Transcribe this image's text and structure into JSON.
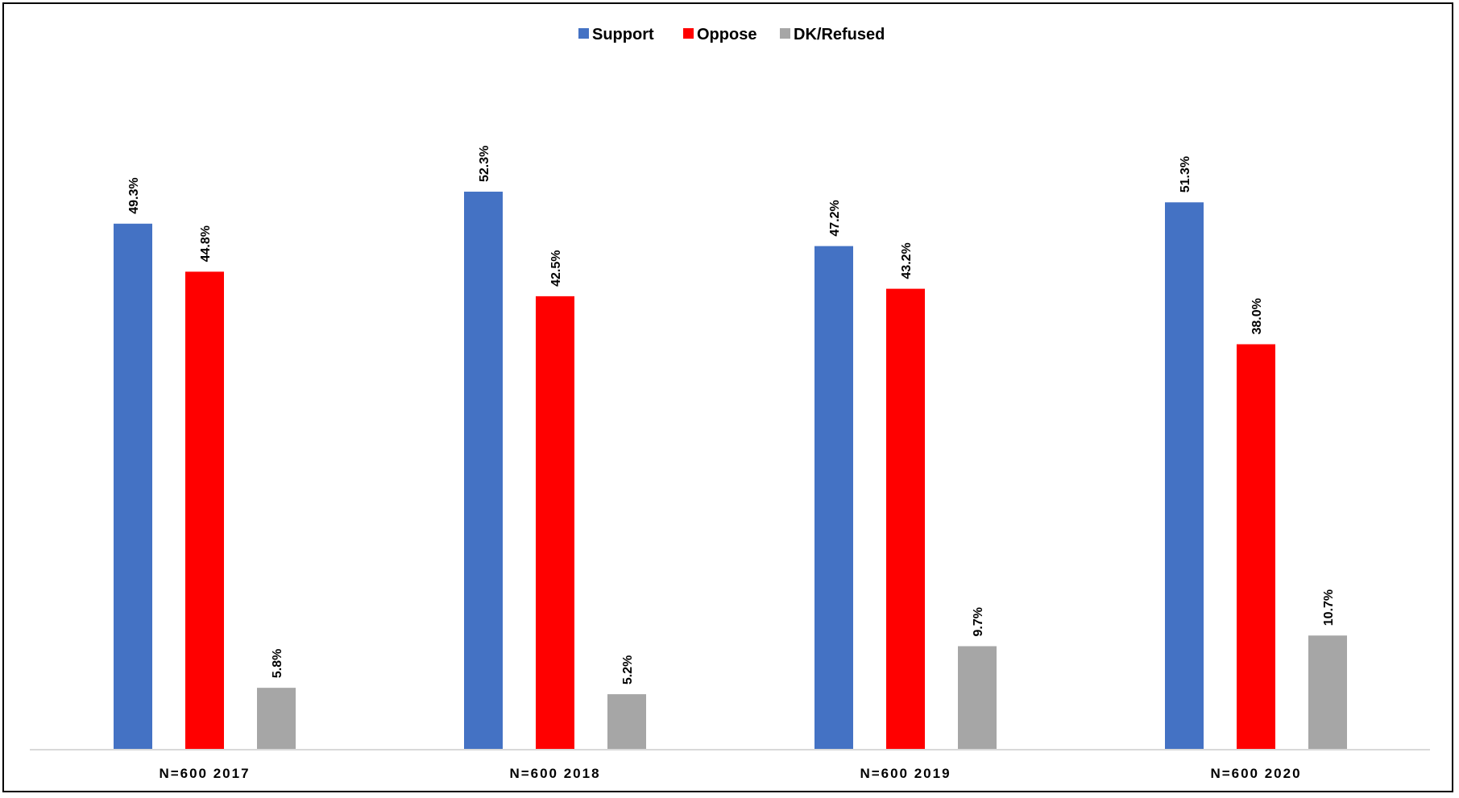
{
  "chart_data": {
    "type": "bar",
    "categories": [
      "N=600 2017",
      "N=600 2018",
      "N=600 2019",
      "N=600 2020"
    ],
    "series": [
      {
        "name": "Support",
        "color": "#4472C4",
        "values": [
          49.3,
          52.3,
          47.2,
          51.3
        ]
      },
      {
        "name": "Oppose",
        "color": "#FF0000",
        "values": [
          44.8,
          42.5,
          43.2,
          38.0
        ]
      },
      {
        "name": "DK/Refused",
        "color": "#A6A6A6",
        "values": [
          5.8,
          5.2,
          9.7,
          10.7
        ]
      }
    ],
    "data_labels": [
      [
        "49.3%",
        "52.3%",
        "47.2%",
        "51.3%"
      ],
      [
        "44.8%",
        "42.5%",
        "43.2%",
        "38.0%"
      ],
      [
        "5.8%",
        "5.2%",
        "9.7%",
        "10.7%"
      ]
    ],
    "ylim": [
      0,
      60
    ],
    "grid": false,
    "legend_position": "top-center",
    "title": "",
    "xlabel": "",
    "ylabel": ""
  }
}
